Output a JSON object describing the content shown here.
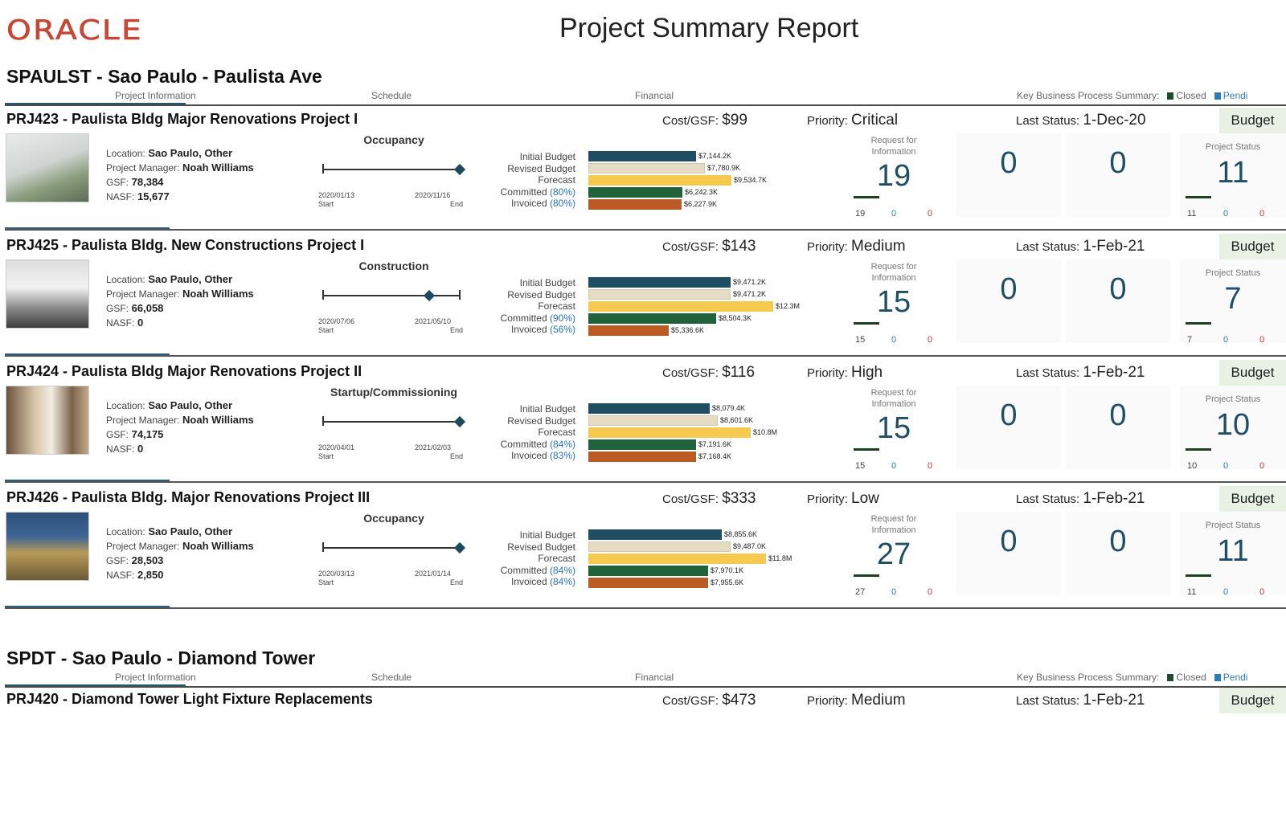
{
  "header": {
    "logo": "ORACLE",
    "title": "Project Summary Report"
  },
  "columns": {
    "project_info": "Project Information",
    "schedule": "Schedule",
    "financial": "Financial",
    "kbp": "Key Business Process Summary:",
    "closed": "Closed",
    "pending": "Pendi"
  },
  "labels": {
    "cost_gsf": "Cost/GSF:",
    "priority": "Priority:",
    "last_status": "Last Status:",
    "budget": "Budget",
    "location": "Location:",
    "pm": "Project Manager:",
    "gsf": "GSF:",
    "nasf": "NASF:",
    "start": "Start",
    "end": "End",
    "rfi": "Request for Information",
    "project_status": "Project Status",
    "initial_budget": "Initial Budget",
    "revised_budget": "Revised Budget",
    "forecast": "Forecast",
    "committed": "Committed",
    "invoiced": "Invoiced"
  },
  "colors": {
    "initial": "#1f4e63",
    "revised": "#e6dcc3",
    "forecast": "#f6c94f",
    "committed": "#20633a",
    "invoiced": "#bc5a24",
    "closed": "#1e4a2e",
    "pending": "#2b7bbf"
  },
  "sites": [
    {
      "title": "SPAULST - Sao Paulo - Paulista Ave",
      "projects": [
        {
          "title": "PRJ423 - Paulista Bldg Major Renovations Project I",
          "cost_gsf": "$99",
          "priority": "Critical",
          "last_status": "1-Dec-20",
          "location": "Sao Paulo, Other",
          "pm": "Noah Williams",
          "gsf": "78,384",
          "nasf": "15,677",
          "phase": "Occupancy",
          "start_date": "2020/01/13",
          "end_date": "2020/11/16",
          "progress": 1.0,
          "committed_pct": "(80%)",
          "invoiced_pct": "(80%)",
          "fin": [
            7144.2,
            7780.9,
            9534.7,
            6242.3,
            6227.9
          ],
          "fin_labels": [
            "$7,144.2K",
            "$7,780.9K",
            "$9,534.7K",
            "$6,242.3K",
            "$6,227.9K"
          ],
          "rfi": "19",
          "k2": "0",
          "k3": "0",
          "status_count": "11",
          "rfi_row": [
            "19",
            "0",
            "0"
          ],
          "status_row": [
            "11",
            "0",
            "0"
          ]
        },
        {
          "title": "PRJ425 - Paulista Bldg. New Constructions Project I",
          "cost_gsf": "$143",
          "priority": "Medium",
          "last_status": "1-Feb-21",
          "location": "Sao Paulo, Other",
          "pm": "Noah Williams",
          "gsf": "66,058",
          "nasf": "0",
          "phase": "Construction",
          "start_date": "2020/07/06",
          "end_date": "2021/05/10",
          "progress": 0.78,
          "committed_pct": "(90%)",
          "invoiced_pct": "(56%)",
          "fin": [
            9471.2,
            9471.2,
            12300,
            8504.3,
            5336.6
          ],
          "fin_labels": [
            "$9,471.2K",
            "$9,471.2K",
            "$12.3M",
            "$8,504.3K",
            "$5,336.6K"
          ],
          "rfi": "15",
          "k2": "0",
          "k3": "0",
          "status_count": "7",
          "rfi_row": [
            "15",
            "0",
            "0"
          ],
          "status_row": [
            "7",
            "0",
            "0"
          ]
        },
        {
          "title": "PRJ424 - Paulista Bldg Major Renovations Project II",
          "cost_gsf": "$116",
          "priority": "High",
          "last_status": "1-Feb-21",
          "location": "Sao Paulo, Other",
          "pm": "Noah Williams",
          "gsf": "74,175",
          "nasf": "0",
          "phase": "Startup/Commissioning",
          "start_date": "2020/04/01",
          "end_date": "2021/02/03",
          "progress": 1.0,
          "committed_pct": "(84%)",
          "invoiced_pct": "(83%)",
          "fin": [
            8079.4,
            8601.6,
            10800,
            7191.6,
            7168.4
          ],
          "fin_labels": [
            "$8,079.4K",
            "$8,601.6K",
            "$10.8M",
            "$7,191.6K",
            "$7,168.4K"
          ],
          "rfi": "15",
          "k2": "0",
          "k3": "0",
          "status_count": "10",
          "rfi_row": [
            "15",
            "0",
            "0"
          ],
          "status_row": [
            "10",
            "0",
            "0"
          ]
        },
        {
          "title": "PRJ426 - Paulista Bldg. Major Renovations Project III",
          "cost_gsf": "$333",
          "priority": "Low",
          "last_status": "1-Feb-21",
          "location": "Sao Paulo, Other",
          "pm": "Noah Williams",
          "gsf": "28,503",
          "nasf": "2,850",
          "phase": "Occupancy",
          "start_date": "2020/03/13",
          "end_date": "2021/01/14",
          "progress": 1.0,
          "committed_pct": "(84%)",
          "invoiced_pct": "(84%)",
          "fin": [
            8855.6,
            9487.0,
            11800,
            7970.1,
            7955.6
          ],
          "fin_labels": [
            "$8,855.6K",
            "$9,487.0K",
            "$11.8M",
            "$7,970.1K",
            "$7,955.6K"
          ],
          "rfi": "27",
          "k2": "0",
          "k3": "0",
          "status_count": "11",
          "rfi_row": [
            "27",
            "0",
            "0"
          ],
          "status_row": [
            "11",
            "0",
            "0"
          ]
        }
      ]
    },
    {
      "title": "SPDT - Sao Paulo - Diamond Tower",
      "projects": [
        {
          "title": "PRJ420 - Diamond Tower Light Fixture Replacements",
          "cost_gsf": "$473",
          "priority": "Medium",
          "last_status": "1-Feb-21"
        }
      ]
    }
  ]
}
